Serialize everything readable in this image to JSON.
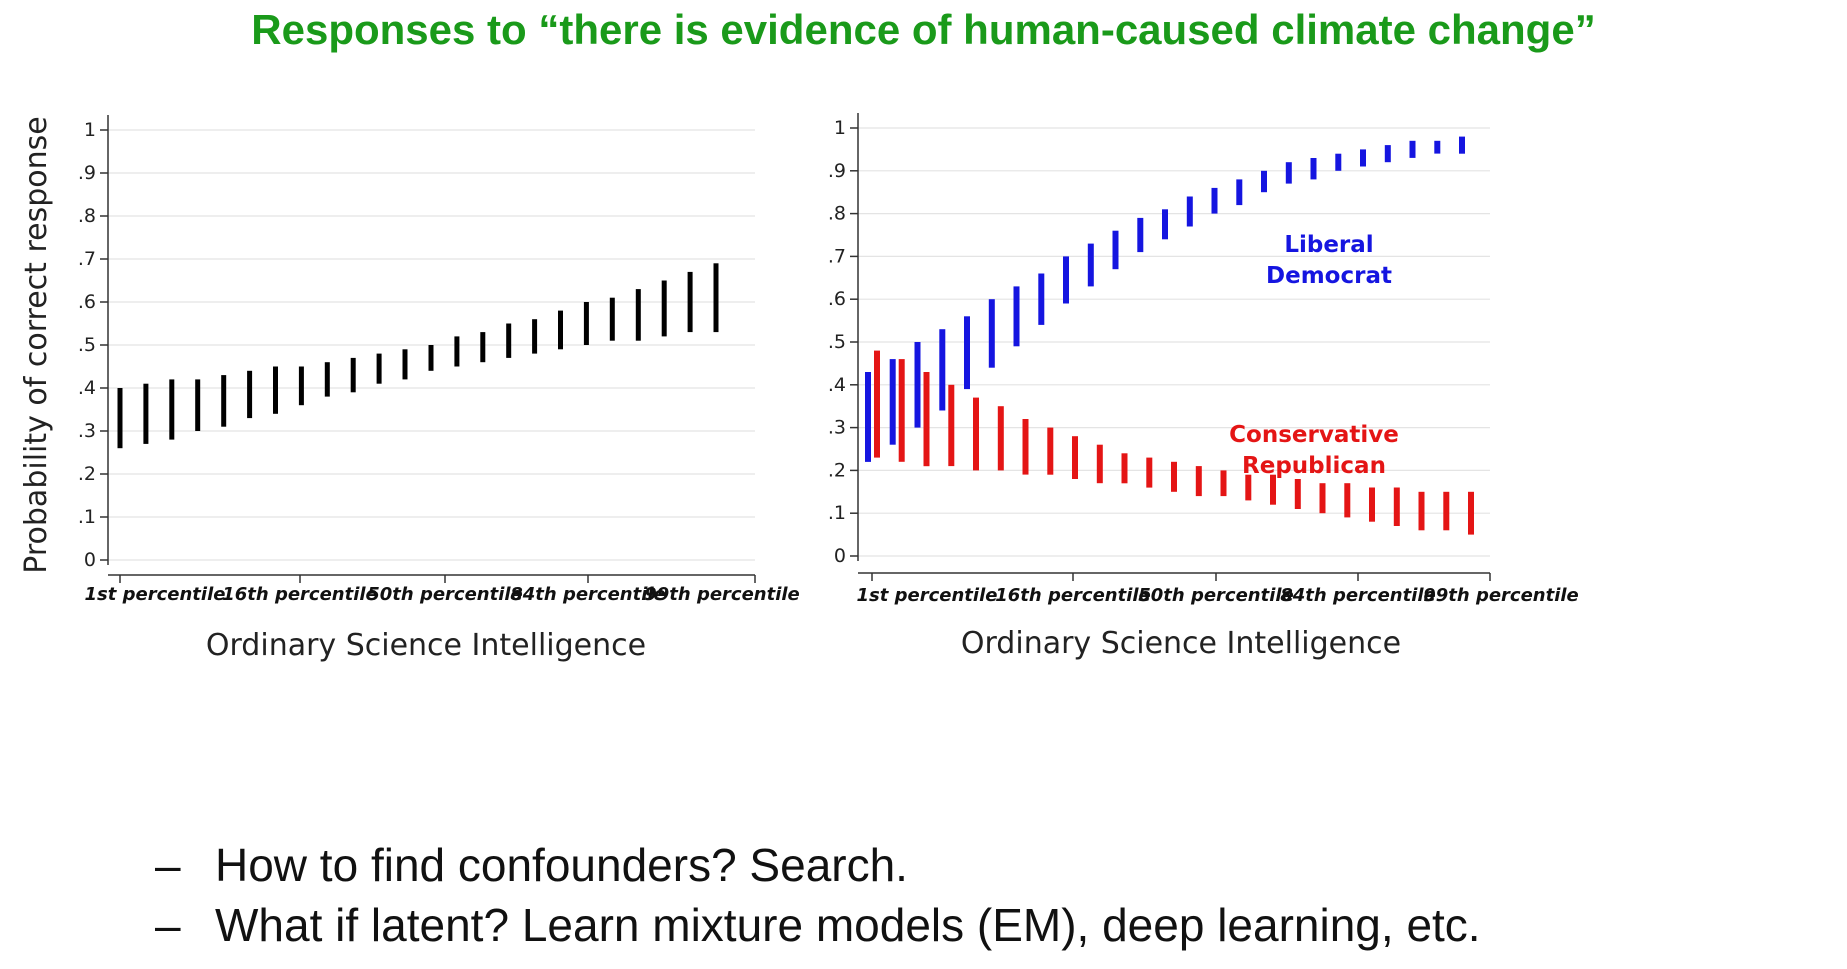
{
  "page": {
    "title": "Responses to “there is evidence of human-caused climate change”",
    "bullets": [
      {
        "marker": "–",
        "text": "How to find confounders?  Search."
      },
      {
        "marker": "–",
        "text": "What if latent?  Learn mixture models (EM), deep learning, etc."
      }
    ]
  },
  "colors": {
    "title": "#1a9a1a",
    "overall": "#000000",
    "liberal": "#1515e0",
    "conservative": "#e41515",
    "grid": "#e4e4e4"
  },
  "chart_data": [
    {
      "type": "range-bar",
      "ylabel": "Probability of correct response",
      "xlabel": "Ordinary Science Intelligence",
      "ylim": [
        0,
        1
      ],
      "yticks": [
        {
          "v": 0,
          "t": "0"
        },
        {
          "v": 0.1,
          "t": ".1"
        },
        {
          "v": 0.2,
          "t": ".2"
        },
        {
          "v": 0.3,
          "t": ".3"
        },
        {
          "v": 0.4,
          "t": ".4"
        },
        {
          "v": 0.5,
          "t": ".5"
        },
        {
          "v": 0.6,
          "t": ".6"
        },
        {
          "v": 0.7,
          "t": ".7"
        },
        {
          "v": 0.8,
          "t": ".8"
        },
        {
          "v": 0.9,
          "t": ".9"
        },
        {
          "v": 1,
          "t": "1"
        }
      ],
      "categories": [
        "1st percentile",
        "16th percentile",
        "50th percentile",
        "84th percentile",
        "99th percentile"
      ],
      "grid": true,
      "series": [
        {
          "color": "#000000",
          "low": [
            0.26,
            0.27,
            0.28,
            0.3,
            0.31,
            0.33,
            0.34,
            0.36,
            0.38,
            0.39,
            0.41,
            0.42,
            0.44,
            0.45,
            0.46,
            0.47,
            0.48,
            0.49,
            0.5,
            0.51,
            0.51,
            0.52,
            0.53,
            0.53
          ],
          "high": [
            0.4,
            0.41,
            0.42,
            0.42,
            0.43,
            0.44,
            0.45,
            0.45,
            0.46,
            0.47,
            0.48,
            0.49,
            0.5,
            0.52,
            0.53,
            0.55,
            0.56,
            0.58,
            0.6,
            0.61,
            0.63,
            0.65,
            0.67,
            0.69
          ]
        }
      ]
    },
    {
      "type": "range-bar",
      "ylabel": "",
      "xlabel": "Ordinary Science Intelligence",
      "ylim": [
        0,
        1
      ],
      "yticks": [
        {
          "v": 0,
          "t": "0"
        },
        {
          "v": 0.1,
          "t": ".1"
        },
        {
          "v": 0.2,
          "t": ".2"
        },
        {
          "v": 0.3,
          "t": ".3"
        },
        {
          "v": 0.4,
          "t": ".4"
        },
        {
          "v": 0.5,
          "t": ".5"
        },
        {
          "v": 0.6,
          "t": ".6"
        },
        {
          "v": 0.7,
          "t": ".7"
        },
        {
          "v": 0.8,
          "t": ".8"
        },
        {
          "v": 0.9,
          "t": ".9"
        },
        {
          "v": 1,
          "t": "1"
        }
      ],
      "categories": [
        "1st percentile",
        "16th percentile",
        "50th percentile",
        "84th percentile",
        "99th percentile"
      ],
      "grid": true,
      "annotations": [
        {
          "text": "Liberal",
          "color": "#1515e0"
        },
        {
          "text": "Democrat",
          "color": "#1515e0"
        },
        {
          "text": "Conservative",
          "color": "#e41515"
        },
        {
          "text": "Republican",
          "color": "#e41515"
        }
      ],
      "series": [
        {
          "name": "Conservative Republican",
          "color": "#e41515",
          "low": [
            0.23,
            0.22,
            0.21,
            0.21,
            0.2,
            0.2,
            0.19,
            0.19,
            0.18,
            0.17,
            0.17,
            0.16,
            0.15,
            0.14,
            0.14,
            0.13,
            0.12,
            0.11,
            0.1,
            0.09,
            0.08,
            0.07,
            0.06,
            0.06,
            0.05
          ],
          "high": [
            0.48,
            0.46,
            0.43,
            0.4,
            0.37,
            0.35,
            0.32,
            0.3,
            0.28,
            0.26,
            0.24,
            0.23,
            0.22,
            0.21,
            0.2,
            0.19,
            0.19,
            0.18,
            0.17,
            0.17,
            0.16,
            0.16,
            0.15,
            0.15,
            0.15
          ]
        },
        {
          "name": "Liberal Democrat",
          "color": "#1515e0",
          "low": [
            0.22,
            0.26,
            0.3,
            0.34,
            0.39,
            0.44,
            0.49,
            0.54,
            0.59,
            0.63,
            0.67,
            0.71,
            0.74,
            0.77,
            0.8,
            0.82,
            0.85,
            0.87,
            0.88,
            0.9,
            0.91,
            0.92,
            0.93,
            0.94,
            0.94
          ],
          "high": [
            0.43,
            0.46,
            0.5,
            0.53,
            0.56,
            0.6,
            0.63,
            0.66,
            0.7,
            0.73,
            0.76,
            0.79,
            0.81,
            0.84,
            0.86,
            0.88,
            0.9,
            0.92,
            0.93,
            0.94,
            0.95,
            0.96,
            0.97,
            0.97,
            0.98
          ]
        }
      ]
    }
  ]
}
